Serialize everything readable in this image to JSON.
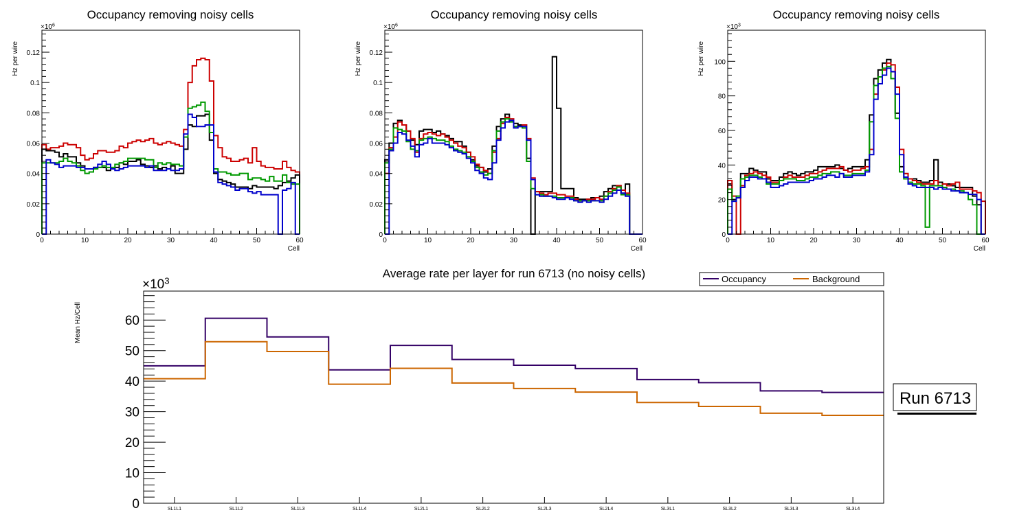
{
  "chart_data": [
    {
      "type": "line",
      "style": "step-histogram",
      "title": "Occupancy removing noisy cells",
      "xlabel": "Cell",
      "ylabel": "Hz per wire",
      "y_multiplier": "×10^6",
      "xlim": [
        0,
        60
      ],
      "ylim": [
        0,
        0.1345
      ],
      "xticks": [
        0,
        10,
        20,
        30,
        40,
        50,
        60
      ],
      "yticks": [
        0,
        0.02,
        0.04,
        0.06,
        0.08,
        0.1,
        0.12
      ],
      "ytick_labels": [
        "0",
        "0.02",
        "0.04",
        "0.06",
        "0.08",
        "0.1",
        "0.12"
      ],
      "grid": false,
      "series": [
        {
          "name": "red",
          "color": "#cc0000",
          "values": [
            0.059,
            0.056,
            0.057,
            0.057,
            0.058,
            0.06,
            0.059,
            0.059,
            0.057,
            0.052,
            0.049,
            0.05,
            0.053,
            0.055,
            0.055,
            0.054,
            0.054,
            0.055,
            0.058,
            0.057,
            0.06,
            0.061,
            0.062,
            0.061,
            0.062,
            0.063,
            0.06,
            0.059,
            0.06,
            0.061,
            0.06,
            0.059,
            0.058,
            0.069,
            0.1,
            0.111,
            0.115,
            0.116,
            0.115,
            0.101,
            0.065,
            0.057,
            0.051,
            0.05,
            0.048,
            0.048,
            0.049,
            0.05,
            0.047,
            0.057,
            0.048,
            0.045,
            0.044,
            0.044,
            0.043,
            0.043,
            0.048,
            0.044,
            0.042,
            0.041
          ]
        },
        {
          "name": "black",
          "color": "#000000",
          "values": [
            0.056,
            0.055,
            0.055,
            0.054,
            0.051,
            0.053,
            0.051,
            0.051,
            0.047,
            0.045,
            0.043,
            0.043,
            0.044,
            0.044,
            0.044,
            0.042,
            0.043,
            0.044,
            0.047,
            0.046,
            0.048,
            0.048,
            0.049,
            0.046,
            0.045,
            0.044,
            0.045,
            0.043,
            0.044,
            0.043,
            0.045,
            0.04,
            0.04,
            0.056,
            0.072,
            0.071,
            0.078,
            0.078,
            0.079,
            0.062,
            0.04,
            0.036,
            0.035,
            0.034,
            0.033,
            0.031,
            0.031,
            0.031,
            0.03,
            0.032,
            0.031,
            0.031,
            0.031,
            0.031,
            0.03,
            0.032,
            0.034,
            0.035,
            0.037,
            0.039
          ]
        },
        {
          "name": "green",
          "color": "#009900",
          "values": [
            0.047,
            0.047,
            0.047,
            0.047,
            0.048,
            0.05,
            0.048,
            0.047,
            0.045,
            0.042,
            0.04,
            0.041,
            0.043,
            0.044,
            0.045,
            0.044,
            0.044,
            0.046,
            0.047,
            0.048,
            0.05,
            0.05,
            0.05,
            0.05,
            0.049,
            0.049,
            0.044,
            0.047,
            0.046,
            0.047,
            0.046,
            0.046,
            0.045,
            0.064,
            0.083,
            0.084,
            0.085,
            0.087,
            0.081,
            0.067,
            0.043,
            0.041,
            0.041,
            0.04,
            0.039,
            0.039,
            0.04,
            0.04,
            0.036,
            0.037,
            0.037,
            0.036,
            0.035,
            0.038,
            0.035,
            0.035,
            0.039,
            0.034,
            0.033,
            0.033
          ]
        },
        {
          "name": "blue",
          "color": "#0000cc",
          "values": [
            0.0,
            0.049,
            0.047,
            0.046,
            0.044,
            0.045,
            0.045,
            0.045,
            0.044,
            0.044,
            0.043,
            0.043,
            0.044,
            0.046,
            0.048,
            0.046,
            0.043,
            0.042,
            0.043,
            0.044,
            0.045,
            0.045,
            0.045,
            0.045,
            0.044,
            0.045,
            0.042,
            0.042,
            0.042,
            0.043,
            0.042,
            0.042,
            0.043,
            0.066,
            0.079,
            0.077,
            0.071,
            0.071,
            0.072,
            0.072,
            0.041,
            0.034,
            0.033,
            0.032,
            0.031,
            0.029,
            0.03,
            0.03,
            0.028,
            0.027,
            0.028,
            0.026,
            0.026,
            0.026,
            0.026,
            0.0,
            0.029,
            0.03,
            0.034,
            0.0
          ]
        }
      ]
    },
    {
      "type": "line",
      "style": "step-histogram",
      "title": "Occupancy removing noisy cells",
      "xlabel": "Cell",
      "ylabel": "Hz per wire",
      "y_multiplier": "×10^6",
      "xlim": [
        0,
        60
      ],
      "ylim": [
        0,
        0.1345
      ],
      "xticks": [
        0,
        10,
        20,
        30,
        40,
        50,
        60
      ],
      "yticks": [
        0,
        0.02,
        0.04,
        0.06,
        0.08,
        0.1,
        0.12
      ],
      "ytick_labels": [
        "0",
        "0.02",
        "0.04",
        "0.06",
        "0.08",
        "0.1",
        "0.12"
      ],
      "grid": false,
      "series": [
        {
          "name": "black",
          "color": "#000000",
          "values": [
            0.049,
            0.06,
            0.073,
            0.075,
            0.072,
            0.068,
            0.062,
            0.059,
            0.068,
            0.069,
            0.069,
            0.067,
            0.068,
            0.066,
            0.065,
            0.063,
            0.061,
            0.061,
            0.058,
            0.054,
            0.049,
            0.045,
            0.044,
            0.041,
            0.043,
            0.058,
            0.071,
            0.076,
            0.079,
            0.075,
            0.073,
            0.072,
            0.072,
            0.05,
            0.0,
            0.028,
            0.028,
            0.028,
            0.028,
            0.117,
            0.083,
            0.03,
            0.03,
            0.03,
            0.024,
            0.023,
            0.023,
            0.023,
            0.024,
            0.024,
            0.025,
            0.028,
            0.03,
            0.032,
            0.032,
            0.027,
            0.033,
            0.0,
            0.0,
            0.0
          ]
        },
        {
          "name": "red",
          "color": "#cc0000",
          "values": [
            0.04,
            0.057,
            0.064,
            0.074,
            0.072,
            0.068,
            0.063,
            0.054,
            0.063,
            0.066,
            0.067,
            0.066,
            0.065,
            0.066,
            0.064,
            0.062,
            0.06,
            0.058,
            0.057,
            0.054,
            0.051,
            0.046,
            0.044,
            0.042,
            0.04,
            0.054,
            0.063,
            0.073,
            0.077,
            0.076,
            0.071,
            0.071,
            0.072,
            0.063,
            0.037,
            0.028,
            0.027,
            0.026,
            0.027,
            0.027,
            0.026,
            0.026,
            0.025,
            0.025,
            0.023,
            0.022,
            0.022,
            0.023,
            0.023,
            0.024,
            0.023,
            0.025,
            0.028,
            0.03,
            0.032,
            0.029,
            0.027,
            0.0,
            0.0,
            0.0
          ]
        },
        {
          "name": "green",
          "color": "#009900",
          "values": [
            0.047,
            0.056,
            0.07,
            0.069,
            0.068,
            0.061,
            0.056,
            0.055,
            0.062,
            0.063,
            0.064,
            0.063,
            0.062,
            0.062,
            0.061,
            0.058,
            0.056,
            0.055,
            0.054,
            0.051,
            0.048,
            0.044,
            0.041,
            0.039,
            0.04,
            0.055,
            0.068,
            0.074,
            0.076,
            0.074,
            0.071,
            0.071,
            0.07,
            0.048,
            0.03,
            0.026,
            0.026,
            0.025,
            0.025,
            0.025,
            0.024,
            0.024,
            0.024,
            0.024,
            0.022,
            0.022,
            0.022,
            0.022,
            0.022,
            0.022,
            0.022,
            0.025,
            0.027,
            0.029,
            0.031,
            0.026,
            0.026,
            0.0,
            0.0,
            0.0
          ]
        },
        {
          "name": "blue",
          "color": "#0000cc",
          "values": [
            0.0,
            0.055,
            0.06,
            0.067,
            0.066,
            0.062,
            0.058,
            0.051,
            0.059,
            0.06,
            0.063,
            0.06,
            0.06,
            0.06,
            0.059,
            0.057,
            0.055,
            0.054,
            0.053,
            0.05,
            0.047,
            0.042,
            0.04,
            0.037,
            0.036,
            0.047,
            0.062,
            0.07,
            0.074,
            0.075,
            0.07,
            0.071,
            0.071,
            0.062,
            0.036,
            0.026,
            0.025,
            0.025,
            0.025,
            0.024,
            0.023,
            0.023,
            0.024,
            0.023,
            0.022,
            0.021,
            0.022,
            0.021,
            0.022,
            0.022,
            0.021,
            0.023,
            0.025,
            0.027,
            0.029,
            0.027,
            0.025,
            0.0,
            0.0,
            0.0
          ]
        }
      ]
    },
    {
      "type": "line",
      "style": "step-histogram",
      "title": "Occupancy removing noisy cells",
      "xlabel": "Cell",
      "ylabel": "Hz per wire",
      "y_multiplier": "×10^3",
      "xlim": [
        0,
        60
      ],
      "ylim": [
        0,
        118
      ],
      "xticks": [
        0,
        10,
        20,
        30,
        40,
        50,
        60
      ],
      "yticks": [
        0,
        20,
        40,
        60,
        80,
        100
      ],
      "ytick_labels": [
        "0",
        "20",
        "40",
        "60",
        "80",
        "100"
      ],
      "grid": false,
      "series": [
        {
          "name": "black",
          "color": "#000000",
          "values": [
            29,
            20,
            21,
            35,
            35,
            38,
            37,
            36,
            36,
            32,
            31,
            31,
            33,
            35,
            36,
            35,
            34,
            35,
            36,
            36,
            37,
            39,
            39,
            39,
            39,
            40,
            38,
            37,
            38,
            39,
            39,
            39,
            43,
            69,
            90,
            95,
            99,
            101,
            94,
            70,
            39,
            35,
            32,
            32,
            31,
            30,
            30,
            31,
            43,
            30,
            29,
            29,
            28,
            27,
            27,
            27,
            27,
            22,
            17,
            0
          ]
        },
        {
          "name": "red",
          "color": "#cc0000",
          "values": [
            31,
            22,
            0,
            28,
            34,
            35,
            36,
            35,
            34,
            33,
            30,
            30,
            31,
            33,
            34,
            33,
            33,
            33,
            34,
            35,
            35,
            36,
            37,
            38,
            38,
            38,
            39,
            37,
            36,
            37,
            37,
            38,
            39,
            49,
            81,
            91,
            95,
            99,
            98,
            85,
            49,
            35,
            32,
            31,
            30,
            29,
            29,
            29,
            31,
            28,
            29,
            28,
            29,
            30,
            26,
            26,
            26,
            25,
            24,
            19
          ]
        },
        {
          "name": "green",
          "color": "#009900",
          "values": [
            26,
            19,
            22,
            32,
            33,
            34,
            34,
            33,
            32,
            29,
            29,
            29,
            31,
            32,
            32,
            32,
            31,
            31,
            32,
            33,
            33,
            34,
            35,
            35,
            36,
            36,
            35,
            34,
            34,
            35,
            35,
            35,
            37,
            65,
            86,
            91,
            96,
            97,
            90,
            67,
            36,
            32,
            30,
            29,
            29,
            28,
            4,
            28,
            28,
            28,
            27,
            26,
            26,
            25,
            25,
            24,
            20,
            17,
            0,
            0
          ]
        },
        {
          "name": "blue",
          "color": "#0000cc",
          "values": [
            0,
            19,
            21,
            27,
            31,
            33,
            33,
            32,
            32,
            30,
            27,
            27,
            28,
            29,
            30,
            30,
            30,
            30,
            30,
            31,
            32,
            32,
            33,
            34,
            34,
            33,
            35,
            33,
            33,
            34,
            34,
            34,
            36,
            46,
            78,
            87,
            92,
            96,
            94,
            81,
            46,
            33,
            29,
            28,
            27,
            27,
            27,
            27,
            26,
            27,
            26,
            26,
            25,
            25,
            24,
            24,
            23,
            23,
            20,
            0
          ]
        }
      ]
    },
    {
      "type": "line",
      "style": "step-histogram",
      "title": "Average rate per layer for run 6713 (no noisy cells)",
      "xlabel": "",
      "ylabel": "Mean Hz/Cell",
      "y_multiplier": "×10^3",
      "categories": [
        "SL1L1",
        "SL1L2",
        "SL1L3",
        "SL1L4",
        "SL2L1",
        "SL2L2",
        "SL2L3",
        "SL2L4",
        "SL3L1",
        "SL3L2",
        "SL3L3",
        "SL3L4"
      ],
      "ylim": [
        0,
        69.5
      ],
      "yticks": [
        0,
        10,
        20,
        30,
        40,
        50,
        60
      ],
      "ytick_labels": [
        "0",
        "10",
        "20",
        "30",
        "40",
        "50",
        "60"
      ],
      "grid": false,
      "legend_position": "top-right",
      "series": [
        {
          "name": "Occupancy",
          "color": "#330066",
          "values": [
            45.0,
            60.6,
            54.5,
            43.7,
            51.7,
            47.1,
            45.2,
            44.1,
            40.5,
            39.5,
            36.8,
            36.3
          ]
        },
        {
          "name": "Background",
          "color": "#cc6600",
          "values": [
            40.8,
            52.9,
            49.7,
            39.0,
            44.2,
            39.4,
            37.6,
            36.4,
            33.0,
            31.7,
            29.5,
            28.8
          ]
        }
      ],
      "annotation": "Run 6713"
    }
  ]
}
